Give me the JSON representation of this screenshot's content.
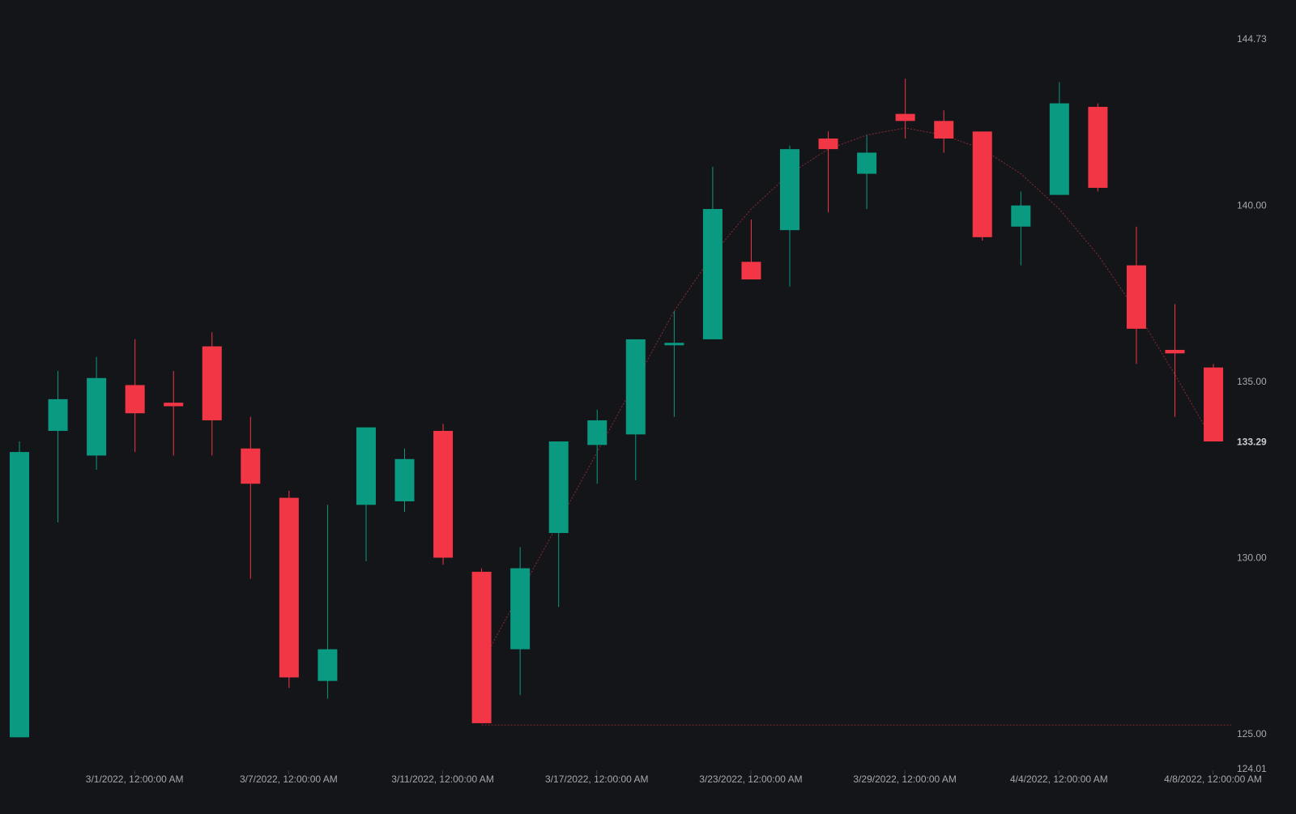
{
  "chart_data": {
    "type": "candlestick",
    "colors": {
      "background": "#141519",
      "up": "#0a9981",
      "down": "#f23645",
      "axis_text": "#a5a8b0",
      "last_price_text": "#c9ccd3",
      "guide_line": "#8a2a33"
    },
    "y_axis": {
      "min": 124.01,
      "max": 144.73,
      "ticks": [
        "144.73",
        "140.00",
        "135.00",
        "133.29",
        "130.00",
        "125.00",
        "124.01"
      ],
      "last_price": "133.29"
    },
    "x_axis": {
      "labels": [
        {
          "label": "3/1/2022, 12:00:00 AM",
          "index": 3
        },
        {
          "label": "3/7/2022, 12:00:00 AM",
          "index": 7
        },
        {
          "label": "3/11/2022, 12:00:00 AM",
          "index": 11
        },
        {
          "label": "3/17/2022, 12:00:00 AM",
          "index": 15
        },
        {
          "label": "3/23/2022, 12:00:00 AM",
          "index": 19
        },
        {
          "label": "3/29/2022, 12:00:00 AM",
          "index": 23
        },
        {
          "label": "4/4/2022, 12:00:00 AM",
          "index": 27
        },
        {
          "label": "4/8/2022, 12:00:00 AM",
          "index": 31
        }
      ]
    },
    "candles": [
      {
        "open": 124.9,
        "high": 133.3,
        "low": 124.9,
        "close": 133.0
      },
      {
        "open": 133.6,
        "high": 135.3,
        "low": 131.0,
        "close": 134.5
      },
      {
        "open": 132.9,
        "high": 135.7,
        "low": 132.5,
        "close": 135.1
      },
      {
        "open": 134.9,
        "high": 136.2,
        "low": 133.0,
        "close": 134.1
      },
      {
        "open": 134.4,
        "high": 135.3,
        "low": 132.9,
        "close": 134.3
      },
      {
        "open": 136.0,
        "high": 136.4,
        "low": 132.9,
        "close": 133.9
      },
      {
        "open": 133.1,
        "high": 134.0,
        "low": 129.4,
        "close": 132.1
      },
      {
        "open": 131.7,
        "high": 131.9,
        "low": 126.3,
        "close": 126.6
      },
      {
        "open": 126.5,
        "high": 131.5,
        "low": 126.0,
        "close": 127.4
      },
      {
        "open": 131.5,
        "high": 133.7,
        "low": 129.9,
        "close": 133.7
      },
      {
        "open": 131.6,
        "high": 133.1,
        "low": 131.3,
        "close": 132.8
      },
      {
        "open": 133.6,
        "high": 133.8,
        "low": 129.8,
        "close": 130.0
      },
      {
        "open": 129.6,
        "high": 129.7,
        "low": 125.3,
        "close": 125.3
      },
      {
        "open": 127.4,
        "high": 130.3,
        "low": 126.1,
        "close": 129.7
      },
      {
        "open": 130.7,
        "high": 133.3,
        "low": 128.6,
        "close": 133.3
      },
      {
        "open": 133.2,
        "high": 134.2,
        "low": 132.1,
        "close": 133.9
      },
      {
        "open": 133.5,
        "high": 136.2,
        "low": 132.2,
        "close": 136.2
      },
      {
        "open": 136.1,
        "high": 137.0,
        "low": 134.0,
        "close": 136.1
      },
      {
        "open": 136.2,
        "high": 141.1,
        "low": 136.2,
        "close": 139.9
      },
      {
        "open": 138.4,
        "high": 139.6,
        "low": 137.9,
        "close": 137.9
      },
      {
        "open": 139.3,
        "high": 141.7,
        "low": 137.7,
        "close": 141.6
      },
      {
        "open": 141.9,
        "high": 142.1,
        "low": 139.8,
        "close": 141.6
      },
      {
        "open": 140.9,
        "high": 142.0,
        "low": 139.9,
        "close": 141.5
      },
      {
        "open": 142.6,
        "high": 143.6,
        "low": 141.9,
        "close": 142.4
      },
      {
        "open": 142.4,
        "high": 142.7,
        "low": 141.5,
        "close": 141.9
      },
      {
        "open": 142.1,
        "high": 142.1,
        "low": 139.0,
        "close": 139.1
      },
      {
        "open": 139.4,
        "high": 140.4,
        "low": 138.3,
        "close": 140.0
      },
      {
        "open": 140.3,
        "high": 143.5,
        "low": 140.3,
        "close": 142.9
      },
      {
        "open": 142.8,
        "high": 142.9,
        "low": 140.4,
        "close": 140.5
      },
      {
        "open": 138.3,
        "high": 139.4,
        "low": 135.5,
        "close": 136.5
      },
      {
        "open": 135.9,
        "high": 137.2,
        "low": 134.0,
        "close": 135.8
      },
      {
        "open": 135.4,
        "high": 135.5,
        "low": 133.3,
        "close": 133.3
      }
    ],
    "overlay_line": [
      {
        "index": 12,
        "value": 127.0
      },
      {
        "index": 13,
        "value": 129.0
      },
      {
        "index": 14,
        "value": 131.0
      },
      {
        "index": 15,
        "value": 133.0
      },
      {
        "index": 16,
        "value": 135.0
      },
      {
        "index": 17,
        "value": 137.0
      },
      {
        "index": 18,
        "value": 138.6
      },
      {
        "index": 19,
        "value": 139.9
      },
      {
        "index": 20,
        "value": 140.9
      },
      {
        "index": 21,
        "value": 141.6
      },
      {
        "index": 22,
        "value": 142.0
      },
      {
        "index": 23,
        "value": 142.2
      },
      {
        "index": 24,
        "value": 142.0
      },
      {
        "index": 25,
        "value": 141.6
      },
      {
        "index": 26,
        "value": 140.9
      },
      {
        "index": 27,
        "value": 139.9
      },
      {
        "index": 28,
        "value": 138.6
      },
      {
        "index": 29,
        "value": 137.0
      },
      {
        "index": 30,
        "value": 135.2
      },
      {
        "index": 31,
        "value": 133.3
      }
    ],
    "support_line": {
      "from_index": 12,
      "value": 125.25
    }
  }
}
